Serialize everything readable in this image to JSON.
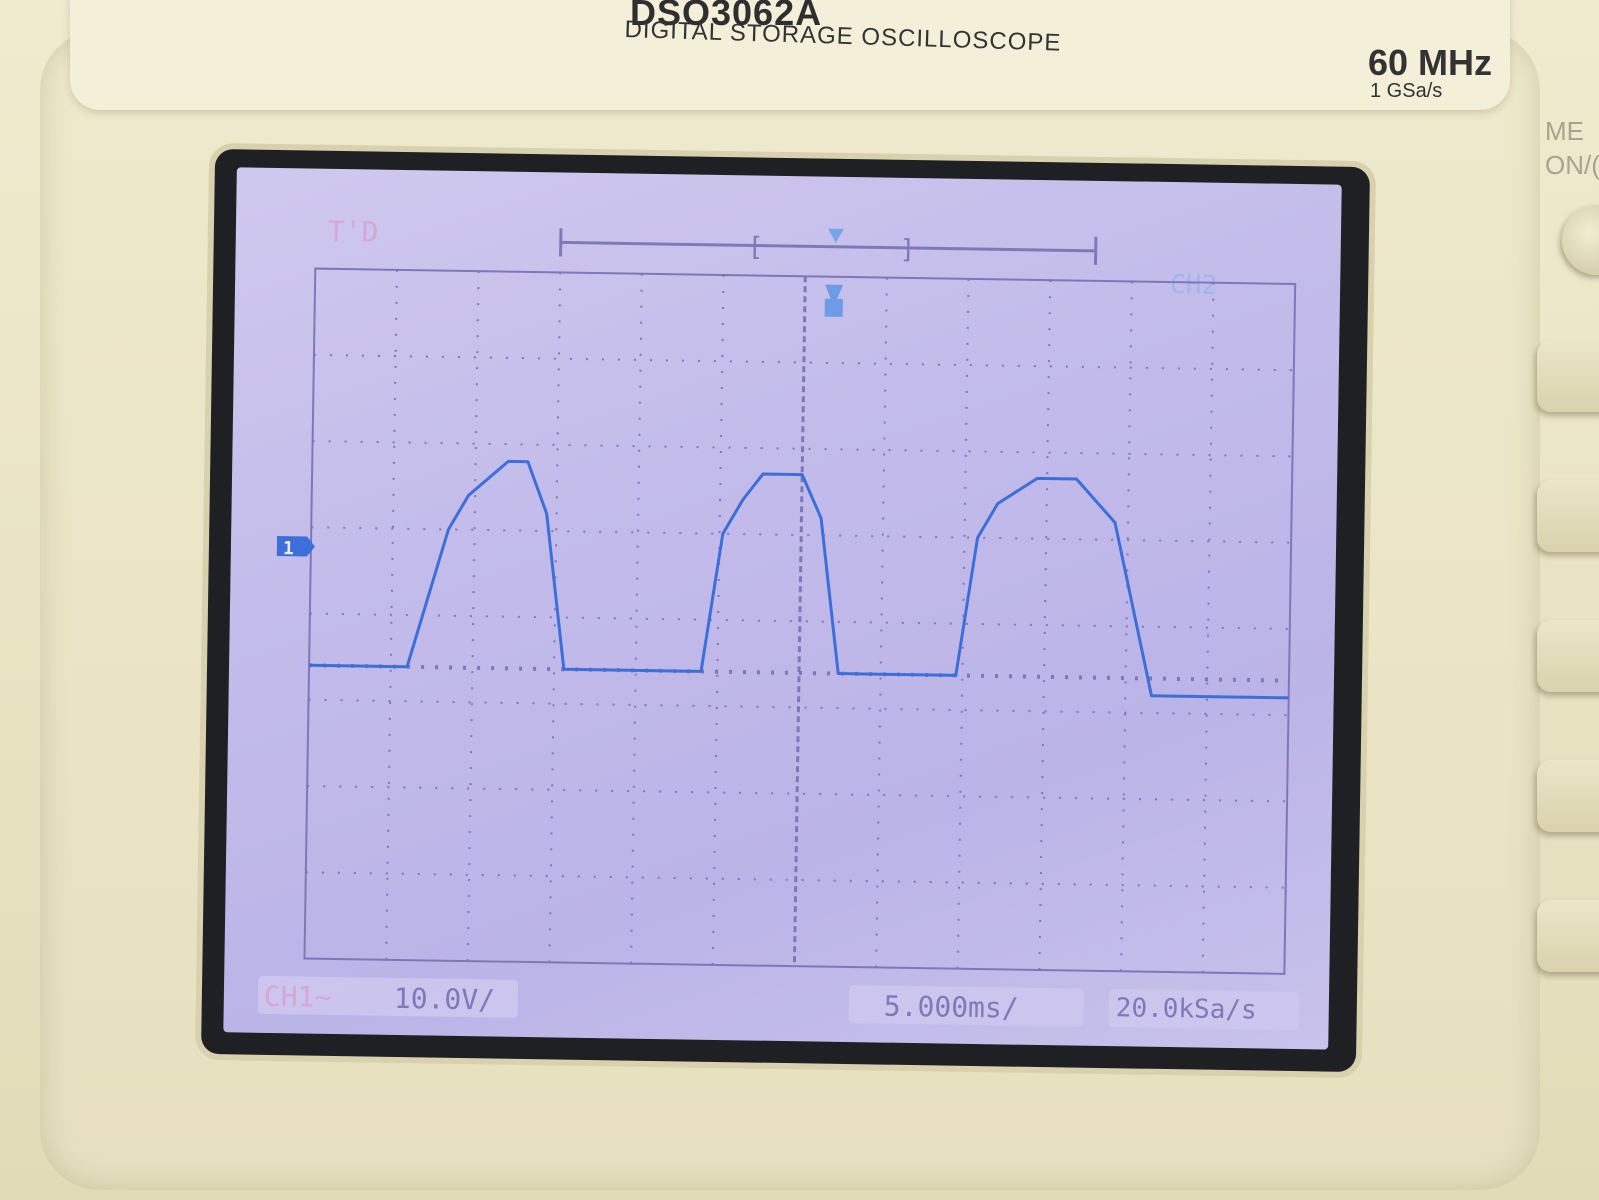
{
  "device": {
    "model": "DSO3062A",
    "subtitle": "DIGITAL STORAGE OSCILLOSCOPE",
    "bandwidth": "60 MHz",
    "sample_rate_spec": "1 GSa/s",
    "side_labels": [
      "ME",
      "ON/("
    ]
  },
  "screen": {
    "run_status": "T'D",
    "channel_tag": "CH2",
    "marker_label": "1",
    "ch1_scale": "CH1~",
    "volts_per_div": "10.0V/",
    "time_per_div": "5.000ms/",
    "sample_rate": "20.0kSa/s"
  },
  "colors": {
    "trace": "#3d6fd8",
    "grid": "#7e78b8",
    "lcd": "#c4bdea"
  },
  "chart_data": {
    "type": "line",
    "xlabel": "",
    "ylabel": "",
    "xlim": [
      -25,
      25
    ],
    "ylim": [
      -40,
      40
    ],
    "grid": true,
    "series": [
      {
        "x": [
          -25,
          -21,
          -20,
          -18,
          -17,
          -15,
          -14,
          -13,
          -12,
          -10,
          -8,
          -6,
          -5,
          -4,
          -3,
          -2,
          0,
          1,
          2,
          3,
          5,
          6,
          8,
          9,
          10,
          12,
          14,
          16,
          18,
          19,
          20,
          22,
          23,
          25
        ],
        "y": [
          -6,
          -6,
          -6,
          10,
          14,
          18,
          18,
          12,
          -6,
          -6,
          -6,
          -6,
          -6,
          10,
          14,
          17,
          17,
          12,
          -6,
          -6,
          -6,
          -6,
          -6,
          10,
          14,
          17,
          17,
          12,
          -8,
          -8,
          -8,
          -8,
          -8,
          -8
        ]
      }
    ]
  }
}
